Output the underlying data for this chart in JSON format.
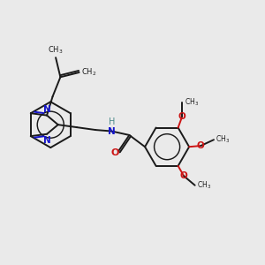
{
  "bg_color": "#eaeaea",
  "bond_color": "#1a1a1a",
  "n_color": "#1414cc",
  "o_color": "#cc1414",
  "h_color": "#4a8a8a",
  "lw": 1.4,
  "xlim": [
    0,
    10
  ],
  "ylim": [
    0,
    10
  ]
}
